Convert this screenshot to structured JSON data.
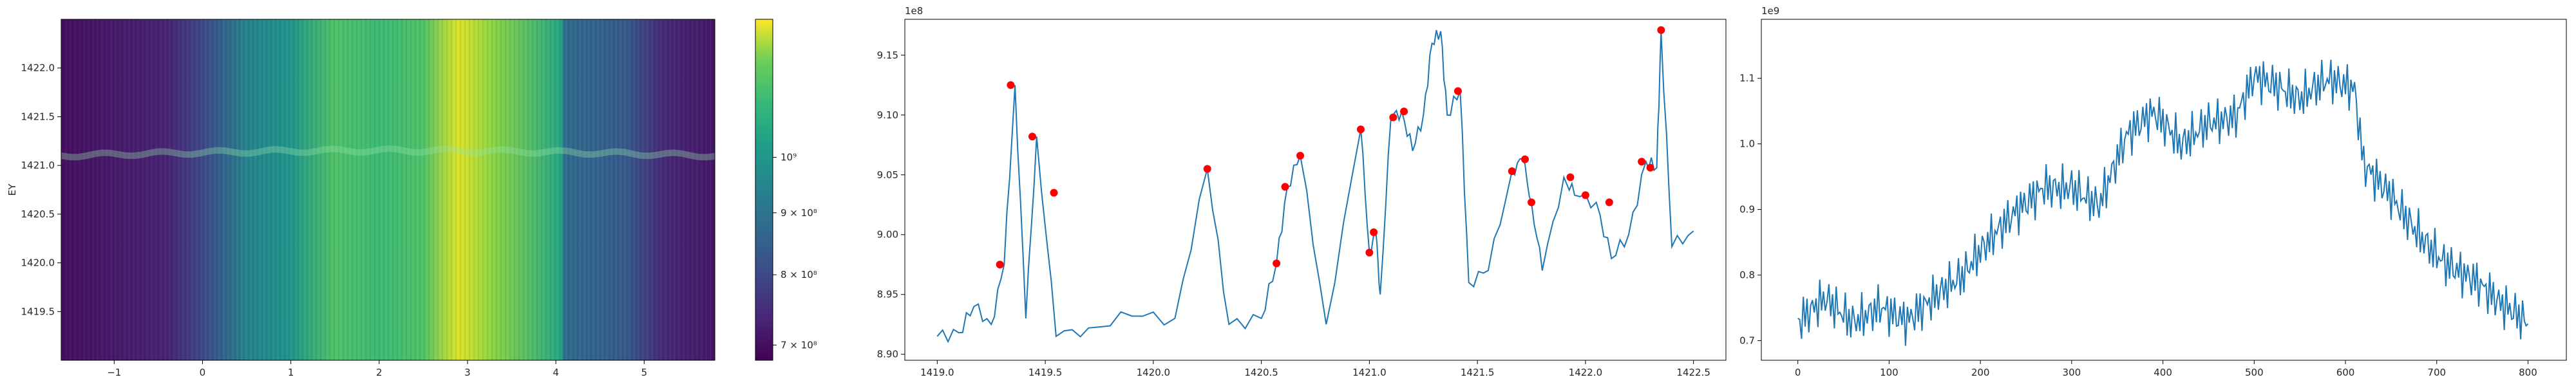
{
  "chart_data": [
    {
      "type": "heatmap",
      "title": "",
      "xlabel": "",
      "ylabel": "EY",
      "xlim": [
        -1.6,
        5.8
      ],
      "ylim": [
        1419.0,
        1422.5
      ],
      "xticks": [
        "−1",
        "0",
        "1",
        "2",
        "3",
        "4",
        "5"
      ],
      "xtick_values": [
        -1,
        0,
        1,
        2,
        3,
        4,
        5
      ],
      "yticks": [
        "1419.5",
        "1420.0",
        "1420.5",
        "1421.0",
        "1421.5",
        "1422.0"
      ],
      "ytick_values": [
        1419.5,
        1420.0,
        1420.5,
        1421.0,
        1421.5,
        1422.0
      ],
      "colormap": "viridis",
      "colorbar": {
        "scale": "log",
        "min": 680000000,
        "max": 1300000000,
        "ticks": [
          {
            "value": 700000000,
            "label": "7 × 10⁸"
          },
          {
            "value": 800000000,
            "label": "8 × 10⁸"
          },
          {
            "value": 900000000,
            "label": "9 × 10⁸"
          },
          {
            "value": 1000000000,
            "label": "10⁹"
          }
        ]
      },
      "column_profile": [
        {
          "x": -1.6,
          "v": 0.04
        },
        {
          "x": -1.0,
          "v": 0.07
        },
        {
          "x": -0.4,
          "v": 0.1
        },
        {
          "x": 0.0,
          "v": 0.22
        },
        {
          "x": 0.5,
          "v": 0.45
        },
        {
          "x": 1.0,
          "v": 0.52
        },
        {
          "x": 1.5,
          "v": 0.72
        },
        {
          "x": 2.0,
          "v": 0.68
        },
        {
          "x": 2.5,
          "v": 0.72
        },
        {
          "x": 2.9,
          "v": 0.95
        },
        {
          "x": 3.3,
          "v": 0.82
        },
        {
          "x": 4.05,
          "v": 0.6
        },
        {
          "x": 4.1,
          "v": 0.35
        },
        {
          "x": 4.8,
          "v": 0.28
        },
        {
          "x": 5.2,
          "v": 0.12
        },
        {
          "x": 5.8,
          "v": 0.06
        }
      ],
      "ridge_y": 1421.1
    },
    {
      "type": "line",
      "title": "",
      "xlabel": "",
      "ylabel": "",
      "offset_text": "1e8",
      "xlim": [
        1418.85,
        1422.65
      ],
      "ylim": [
        8.895,
        9.18
      ],
      "xticks": [
        "1419.0",
        "1419.5",
        "1420.0",
        "1420.5",
        "1421.0",
        "1421.5",
        "1422.0",
        "1422.5"
      ],
      "xtick_values": [
        1419.0,
        1419.5,
        1420.0,
        1420.5,
        1421.0,
        1421.5,
        1422.0,
        1422.5
      ],
      "yticks": [
        "8.90",
        "8.95",
        "9.00",
        "9.05",
        "9.10",
        "9.15"
      ],
      "ytick_values": [
        8.9,
        8.95,
        9.0,
        9.05,
        9.1,
        9.15
      ],
      "line_color": "#1f77b4",
      "marker_color": "#ff0000",
      "x": [
        1419.0,
        1419.1,
        1419.17,
        1419.25,
        1419.31,
        1419.36,
        1419.41,
        1419.46,
        1419.55,
        1419.7,
        1419.9,
        1420.1,
        1420.25,
        1420.35,
        1420.5,
        1420.57,
        1420.62,
        1420.68,
        1420.8,
        1420.96,
        1421.0,
        1421.03,
        1421.05,
        1421.1,
        1421.15,
        1421.2,
        1421.25,
        1421.29,
        1421.33,
        1421.36,
        1421.42,
        1421.46,
        1421.55,
        1421.66,
        1421.71,
        1421.75,
        1421.8,
        1421.9,
        1421.95,
        1422.05,
        1422.12,
        1422.2,
        1422.28,
        1422.33,
        1422.35,
        1422.4,
        1422.5
      ],
      "y": [
        8.915,
        8.918,
        8.94,
        8.925,
        8.975,
        9.125,
        8.93,
        9.082,
        8.915,
        8.922,
        8.932,
        8.93,
        9.055,
        8.925,
        8.93,
        8.976,
        9.04,
        9.066,
        8.925,
        9.088,
        8.985,
        9.002,
        8.95,
        9.098,
        9.103,
        9.07,
        9.1,
        9.16,
        9.17,
        9.1,
        9.12,
        8.96,
        8.97,
        9.053,
        9.063,
        9.027,
        8.97,
        9.048,
        9.033,
        9.027,
        8.98,
        9.0,
        9.061,
        9.056,
        9.17,
        8.99,
        9.003
      ],
      "peaks": {
        "x": [
          1419.29,
          1419.34,
          1419.44,
          1419.54,
          1420.25,
          1420.57,
          1420.61,
          1420.68,
          1420.96,
          1421.0,
          1421.02,
          1421.11,
          1421.16,
          1421.41,
          1421.66,
          1421.72,
          1421.75,
          1421.93,
          1422.0,
          1422.11,
          1422.26,
          1422.3,
          1422.35
        ],
        "y": [
          8.975,
          9.125,
          9.082,
          9.035,
          9.055,
          8.976,
          9.04,
          9.066,
          9.088,
          8.985,
          9.002,
          9.098,
          9.103,
          9.12,
          9.053,
          9.063,
          9.027,
          9.048,
          9.033,
          9.027,
          9.061,
          9.056,
          9.171
        ]
      }
    },
    {
      "type": "line",
      "title": "",
      "xlabel": "",
      "ylabel": "",
      "offset_text": "1e9",
      "xlim": [
        -40,
        842
      ],
      "ylim": [
        0.67,
        1.19
      ],
      "xticks": [
        "0",
        "100",
        "200",
        "300",
        "400",
        "500",
        "600",
        "700",
        "800"
      ],
      "xtick_values": [
        0,
        100,
        200,
        300,
        400,
        500,
        600,
        700,
        800
      ],
      "yticks": [
        "0.7",
        "0.8",
        "0.9",
        "1.0",
        "1.1"
      ],
      "ytick_values": [
        0.7,
        0.8,
        0.9,
        1.0,
        1.1
      ],
      "line_color": "#1f77b4",
      "x": [
        0,
        30,
        60,
        90,
        120,
        150,
        180,
        210,
        240,
        270,
        300,
        330,
        360,
        390,
        420,
        450,
        480,
        500,
        520,
        550,
        580,
        610,
        620,
        650,
        680,
        710,
        740,
        770,
        800
      ],
      "y": [
        0.71,
        0.76,
        0.74,
        0.77,
        0.74,
        0.76,
        0.78,
        0.84,
        0.9,
        0.95,
        0.95,
        0.91,
        1.0,
        1.03,
        0.99,
        1.04,
        1.06,
        1.12,
        1.1,
        1.06,
        1.08,
        1.07,
        0.96,
        0.93,
        0.88,
        0.83,
        0.79,
        0.74,
        0.71
      ]
    }
  ]
}
